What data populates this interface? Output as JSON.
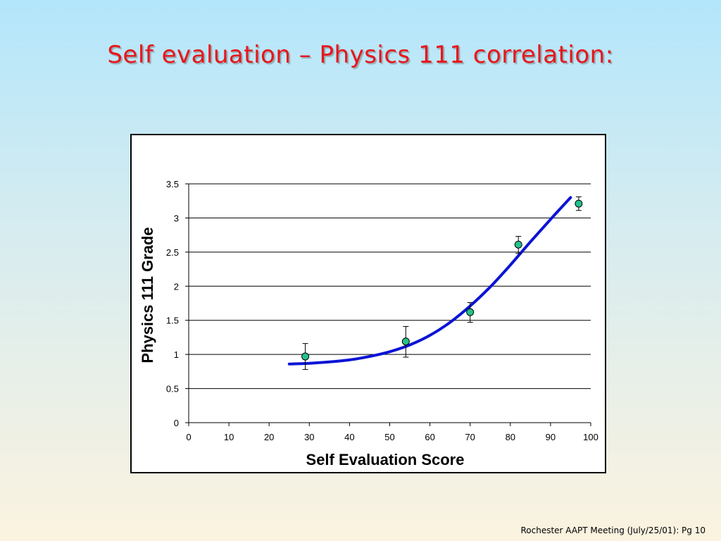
{
  "slide": {
    "title": "Self evaluation – Physics 111 correlation:",
    "footer": "Rochester AAPT Meeting (July/25/01): Pg 10"
  },
  "colors": {
    "title": "#e8161c",
    "fit_line": "#0b14d6",
    "marker_fill": "#25c28a",
    "gridline": "#000000"
  },
  "chart_data": {
    "type": "scatter",
    "xlabel": "Self Evaluation Score",
    "ylabel": "Physics 111 Grade",
    "xlim": [
      0,
      100
    ],
    "ylim": [
      0,
      3.5
    ],
    "xticks": [
      0,
      10,
      20,
      30,
      40,
      50,
      60,
      70,
      80,
      90,
      100
    ],
    "yticks": [
      0,
      0.5,
      1,
      1.5,
      2,
      2.5,
      3,
      3.5
    ],
    "ytick_labels": [
      "0",
      "0.5",
      "1",
      "1.5",
      "2",
      "2.5",
      "3",
      "3.5"
    ],
    "grid": "horizontal",
    "legend": "none",
    "points": [
      {
        "x": 29,
        "y": 0.97,
        "err_low": 0.78,
        "err_high": 1.16
      },
      {
        "x": 54,
        "y": 1.19,
        "err_low": 0.96,
        "err_high": 1.41
      },
      {
        "x": 70,
        "y": 1.62,
        "err_low": 1.47,
        "err_high": 1.76
      },
      {
        "x": 82,
        "y": 2.61,
        "err_low": 2.48,
        "err_high": 2.73
      },
      {
        "x": 97,
        "y": 3.21,
        "err_low": 3.11,
        "err_high": 3.31
      }
    ],
    "fit_curve": {
      "x": [
        25,
        30,
        35,
        40,
        45,
        50,
        55,
        60,
        65,
        70,
        75,
        80,
        85,
        90,
        95
      ],
      "y": [
        0.86,
        0.87,
        0.89,
        0.92,
        0.97,
        1.04,
        1.14,
        1.28,
        1.47,
        1.71,
        1.99,
        2.31,
        2.65,
        2.98,
        3.3
      ]
    }
  }
}
